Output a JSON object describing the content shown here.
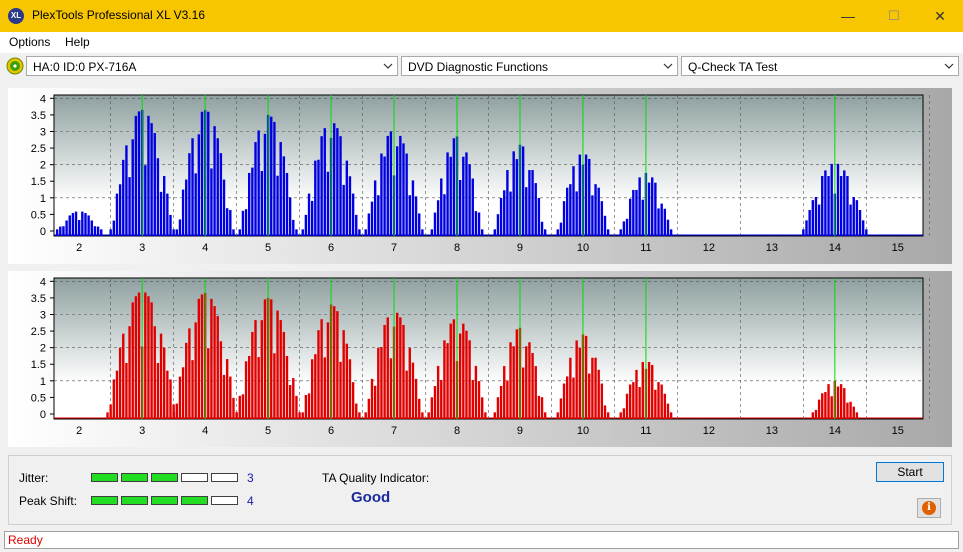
{
  "window": {
    "title": "PlexTools Professional XL V3.16",
    "app_icon_text": "XL",
    "min": "—",
    "max": "☐",
    "close": "✕"
  },
  "menu": [
    {
      "label": "Options"
    },
    {
      "label": "Help"
    }
  ],
  "selectors": {
    "drive": "HA:0 ID:0  PX-716A",
    "function": "DVD Diagnostic Functions",
    "test": "Q-Check TA Test"
  },
  "colors": {
    "titlebar": "#f7c600",
    "top_bars": "#0000e0",
    "bottom_bars": "#e00000",
    "marker_lines": "#00dd00",
    "status_text": "#e00000"
  },
  "chart_data": [
    {
      "type": "bar",
      "x_ticks": [
        2,
        3,
        4,
        5,
        6,
        7,
        8,
        9,
        10,
        11,
        12,
        13,
        14,
        15
      ],
      "y_ticks": [
        "0",
        "0.5",
        "1",
        "1.5",
        "2",
        "2.5",
        "3",
        "3.5",
        "4"
      ],
      "xlim": [
        1.6,
        15.4
      ],
      "ylim": [
        0,
        4.1
      ],
      "markers": [
        3,
        4,
        5,
        6,
        7,
        8,
        9,
        10,
        11,
        14
      ],
      "bar_color": "#0000e0",
      "groups": [
        {
          "center": 2.0,
          "peak": 0.6,
          "half": 0.35
        },
        {
          "center": 3.0,
          "peak": 3.65,
          "half": 0.48
        },
        {
          "center": 4.0,
          "peak": 3.65,
          "half": 0.47
        },
        {
          "center": 5.0,
          "peak": 3.5,
          "half": 0.45
        },
        {
          "center": 6.0,
          "peak": 3.3,
          "half": 0.45
        },
        {
          "center": 7.0,
          "peak": 3.05,
          "half": 0.43
        },
        {
          "center": 8.0,
          "peak": 2.85,
          "half": 0.42
        },
        {
          "center": 9.0,
          "peak": 2.6,
          "half": 0.4
        },
        {
          "center": 10.0,
          "peak": 2.35,
          "half": 0.4
        },
        {
          "center": 11.0,
          "peak": 1.75,
          "half": 0.38
        },
        {
          "center": 14.0,
          "peak": 2.05,
          "half": 0.5
        }
      ]
    },
    {
      "type": "bar",
      "x_ticks": [
        2,
        3,
        4,
        5,
        6,
        7,
        8,
        9,
        10,
        11,
        12,
        13,
        14,
        15
      ],
      "y_ticks": [
        "0",
        "0.5",
        "1",
        "1.5",
        "2",
        "2.5",
        "3",
        "3.5",
        "4"
      ],
      "xlim": [
        1.6,
        15.4
      ],
      "ylim": [
        0,
        4.1
      ],
      "markers": [
        3,
        4,
        5,
        6,
        7,
        8,
        9,
        10,
        11,
        14
      ],
      "bar_color": "#e00000",
      "groups": [
        {
          "center": 3.0,
          "peak": 3.7,
          "half": 0.55
        },
        {
          "center": 4.0,
          "peak": 3.65,
          "half": 0.5
        },
        {
          "center": 5.0,
          "peak": 3.5,
          "half": 0.48
        },
        {
          "center": 6.0,
          "peak": 3.3,
          "half": 0.47
        },
        {
          "center": 7.0,
          "peak": 3.1,
          "half": 0.45
        },
        {
          "center": 8.0,
          "peak": 2.9,
          "half": 0.43
        },
        {
          "center": 9.0,
          "peak": 2.6,
          "half": 0.42
        },
        {
          "center": 10.0,
          "peak": 2.4,
          "half": 0.42
        },
        {
          "center": 11.0,
          "peak": 1.6,
          "half": 0.38
        },
        {
          "center": 14.0,
          "peak": 1.0,
          "half": 0.35
        }
      ]
    }
  ],
  "results": {
    "jitter_label": "Jitter:",
    "jitter_value": "3",
    "jitter_level": 3,
    "peak_shift_label": "Peak Shift:",
    "peak_shift_value": "4",
    "peak_shift_level": 4,
    "meter_segments": 5,
    "quality_label": "TA Quality Indicator:",
    "quality_value": "Good"
  },
  "buttons": {
    "start": "Start",
    "info_icon": "info-icon"
  },
  "status": {
    "text": "Ready"
  }
}
